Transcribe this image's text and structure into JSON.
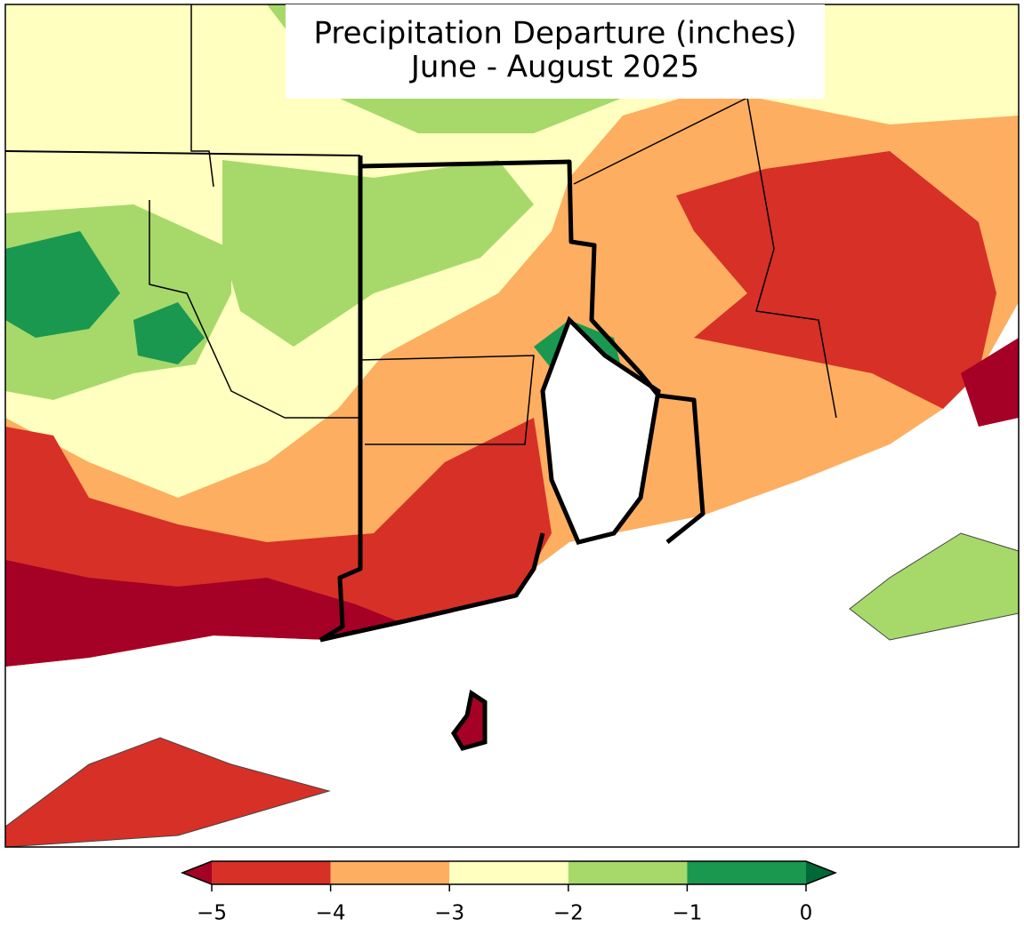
{
  "title": [
    "Precipitation Departure (inches)",
    "June - August 2025"
  ],
  "colorbar": {
    "ticks": [
      {
        "value": -5,
        "label": "−5"
      },
      {
        "value": -4,
        "label": "−4"
      },
      {
        "value": -3,
        "label": "−3"
      },
      {
        "value": -2,
        "label": "−2"
      },
      {
        "value": -1,
        "label": "−1"
      },
      0
    ],
    "colors": [
      "#d73027",
      "#fdae61",
      "#ffffbf",
      "#a6d96a",
      "#1a9850"
    ],
    "under": "#a50026",
    "over": "#006837"
  }
}
